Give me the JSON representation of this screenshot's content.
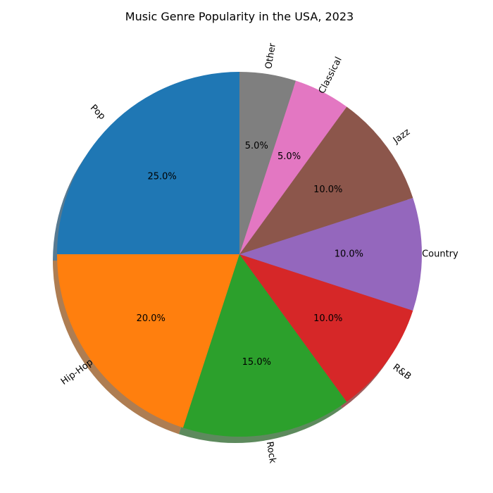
{
  "chart_data": {
    "type": "pie",
    "title": "Music Genre Popularity in the USA, 2023",
    "categories": [
      "Pop",
      "Hip-Hop",
      "Rock",
      "R&B",
      "Country",
      "Jazz",
      "Classical",
      "Other"
    ],
    "values": [
      25,
      20,
      15,
      10,
      10,
      10,
      5,
      5
    ],
    "percent_labels": [
      "25.0%",
      "20.0%",
      "15.0%",
      "10.0%",
      "10.0%",
      "10.0%",
      "5.0%",
      "5.0%"
    ],
    "colors": [
      "#1f77b4",
      "#ff7f0e",
      "#2ca02c",
      "#d62728",
      "#9467bd",
      "#8c564b",
      "#e377c2",
      "#7f7f7f"
    ],
    "start_angle_deg": 90,
    "direction": "counterclockwise",
    "shadow": true,
    "legend": "none"
  }
}
